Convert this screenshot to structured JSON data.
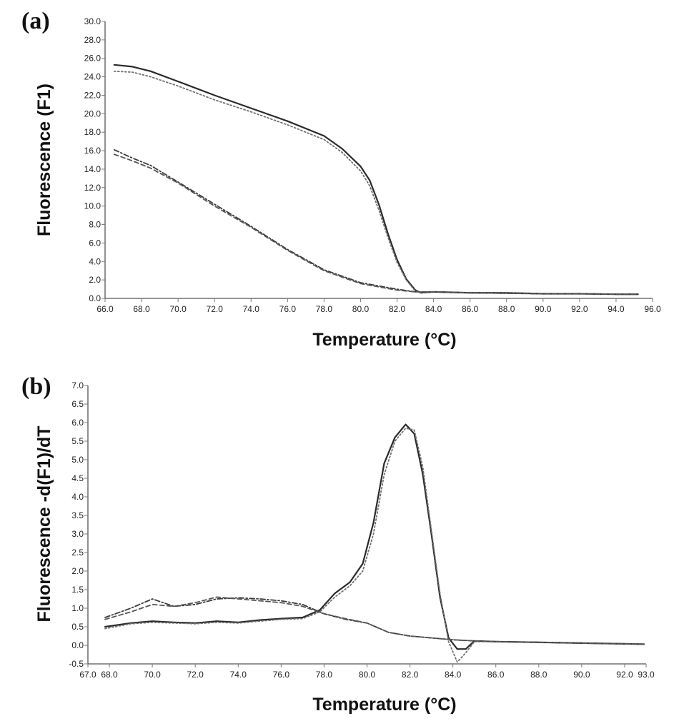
{
  "chart_data": [
    {
      "panel_label": "(a)",
      "type": "line",
      "xlabel": "Temperature (°C)",
      "ylabel": "Fluorescence (F1)",
      "xlim": [
        66.0,
        96.0
      ],
      "ylim": [
        0.0,
        30.0
      ],
      "x_ticks": [
        "66.0",
        "68.0",
        "70.0",
        "72.0",
        "74.0",
        "76.0",
        "78.0",
        "80.0",
        "82.0",
        "84.0",
        "86.0",
        "88.0",
        "90.0",
        "92.0",
        "94.0",
        "96.0"
      ],
      "y_ticks": [
        "0.0",
        "2.0",
        "4.0",
        "6.0",
        "8.0",
        "10.0",
        "12.0",
        "14.0",
        "16.0",
        "18.0",
        "20.0",
        "22.0",
        "24.0",
        "26.0",
        "28.0",
        "30.0"
      ],
      "grid": false,
      "series": [
        {
          "style": "solid",
          "color": "#2a2a2a",
          "x": [
            66.5,
            67.5,
            68.5,
            70,
            72,
            74,
            76,
            78,
            79,
            80,
            80.5,
            81,
            81.5,
            82,
            82.5,
            83,
            83.3,
            84,
            86,
            88,
            90,
            92,
            94,
            95.2
          ],
          "y": [
            25.3,
            25.1,
            24.6,
            23.5,
            22.0,
            20.6,
            19.2,
            17.6,
            16.2,
            14.3,
            12.8,
            10.2,
            7.0,
            4.2,
            2.1,
            0.9,
            0.6,
            0.7,
            0.6,
            0.6,
            0.5,
            0.5,
            0.45,
            0.45
          ]
        },
        {
          "style": "dotted",
          "color": "#707070",
          "x": [
            66.5,
            67.5,
            68.5,
            70,
            72,
            74,
            76,
            78,
            79,
            80,
            80.5,
            81,
            81.5,
            82,
            82.5,
            83,
            83.3,
            84,
            86,
            88,
            90,
            92,
            94,
            95.2
          ],
          "y": [
            24.6,
            24.5,
            24.0,
            23.0,
            21.5,
            20.2,
            18.8,
            17.2,
            15.8,
            13.8,
            12.2,
            9.6,
            6.6,
            3.9,
            2.0,
            0.8,
            0.6,
            0.7,
            0.6,
            0.6,
            0.5,
            0.5,
            0.45,
            0.45
          ]
        },
        {
          "style": "dashdot",
          "color": "#3a3a3a",
          "x": [
            66.5,
            67.5,
            68.5,
            70,
            72,
            74,
            76,
            78,
            80,
            82,
            83,
            84,
            86,
            88,
            90,
            92,
            94,
            95.2
          ],
          "y": [
            16.1,
            15.2,
            14.4,
            12.6,
            10.2,
            7.8,
            5.3,
            3.1,
            1.7,
            1.0,
            0.7,
            0.7,
            0.6,
            0.55,
            0.5,
            0.5,
            0.45,
            0.45
          ]
        },
        {
          "style": "dashed",
          "color": "#555555",
          "x": [
            66.5,
            67.5,
            68.5,
            70,
            72,
            74,
            76,
            78,
            80,
            82,
            83,
            84,
            86,
            88,
            90,
            92,
            94,
            95.2
          ],
          "y": [
            15.6,
            14.9,
            14.1,
            12.5,
            10.0,
            7.7,
            5.2,
            3.0,
            1.6,
            0.9,
            0.7,
            0.7,
            0.6,
            0.55,
            0.5,
            0.5,
            0.45,
            0.45
          ]
        }
      ]
    },
    {
      "panel_label": "(b)",
      "type": "line",
      "xlabel": "Temperature (°C)",
      "ylabel": "Fluorescence -d(F1)/dT",
      "xlim": [
        67.0,
        93.0
      ],
      "ylim": [
        -0.5,
        7.0
      ],
      "x_ticks": [
        "67.0",
        "68.0",
        "70.0",
        "72.0",
        "74.0",
        "76.0",
        "78.0",
        "80.0",
        "82.0",
        "84.0",
        "86.0",
        "88.0",
        "90.0",
        "92.0",
        "93.0"
      ],
      "y_ticks": [
        "-0.5",
        "0.0",
        "0.5",
        "1.0",
        "1.5",
        "2.0",
        "2.5",
        "3.0",
        "3.5",
        "4.0",
        "4.5",
        "5.0",
        "5.5",
        "6.0",
        "6.5",
        "7.0"
      ],
      "grid": false,
      "series": [
        {
          "style": "solid",
          "color": "#2a2a2a",
          "x": [
            67.8,
            69,
            70,
            71,
            72,
            73,
            74,
            75,
            76,
            77,
            77.8,
            78.5,
            79.2,
            79.8,
            80.3,
            80.8,
            81.3,
            81.8,
            82.2,
            82.6,
            83,
            83.4,
            83.8,
            84.2,
            84.6,
            85,
            86,
            88,
            90,
            92,
            92.9
          ],
          "y": [
            0.5,
            0.6,
            0.65,
            0.62,
            0.6,
            0.65,
            0.62,
            0.68,
            0.72,
            0.75,
            0.95,
            1.4,
            1.7,
            2.2,
            3.3,
            4.9,
            5.6,
            5.95,
            5.7,
            4.6,
            3.0,
            1.3,
            0.2,
            -0.1,
            -0.1,
            0.12,
            0.1,
            0.08,
            0.06,
            0.04,
            0.03
          ]
        },
        {
          "style": "dotted",
          "color": "#707070",
          "x": [
            67.8,
            69,
            70,
            71,
            72,
            73,
            74,
            75,
            76,
            77,
            77.8,
            78.5,
            79.2,
            79.8,
            80.3,
            80.8,
            81.3,
            81.8,
            82.2,
            82.6,
            83,
            83.4,
            83.8,
            84.2,
            84.6,
            85,
            86,
            88,
            90,
            92,
            92.9
          ],
          "y": [
            0.45,
            0.58,
            0.62,
            0.6,
            0.58,
            0.62,
            0.6,
            0.65,
            0.7,
            0.72,
            0.9,
            1.3,
            1.6,
            2.0,
            3.0,
            4.6,
            5.5,
            5.85,
            5.8,
            4.8,
            3.1,
            1.4,
            0.1,
            -0.45,
            -0.2,
            0.1,
            0.1,
            0.08,
            0.06,
            0.04,
            0.03
          ]
        },
        {
          "style": "dashdot",
          "color": "#3a3a3a",
          "x": [
            67.8,
            69,
            70,
            71,
            72,
            73,
            74,
            75,
            76,
            77,
            78,
            79,
            80,
            81,
            82,
            83,
            84,
            85,
            86,
            88,
            90,
            92,
            92.9
          ],
          "y": [
            0.75,
            1.0,
            1.25,
            1.05,
            1.1,
            1.25,
            1.28,
            1.25,
            1.2,
            1.1,
            0.85,
            0.7,
            0.6,
            0.35,
            0.25,
            0.2,
            0.15,
            0.12,
            0.1,
            0.08,
            0.06,
            0.04,
            0.03
          ]
        },
        {
          "style": "dashed",
          "color": "#555555",
          "x": [
            67.8,
            69,
            70,
            71,
            72,
            73,
            74,
            75,
            76,
            77,
            78,
            79,
            80,
            81,
            82,
            83,
            84,
            85,
            86,
            88,
            90,
            92,
            92.9
          ],
          "y": [
            0.7,
            0.9,
            1.1,
            1.05,
            1.15,
            1.3,
            1.25,
            1.2,
            1.15,
            1.05,
            0.85,
            0.72,
            0.6,
            0.35,
            0.25,
            0.2,
            0.15,
            0.12,
            0.1,
            0.08,
            0.06,
            0.04,
            0.03
          ]
        }
      ]
    }
  ]
}
